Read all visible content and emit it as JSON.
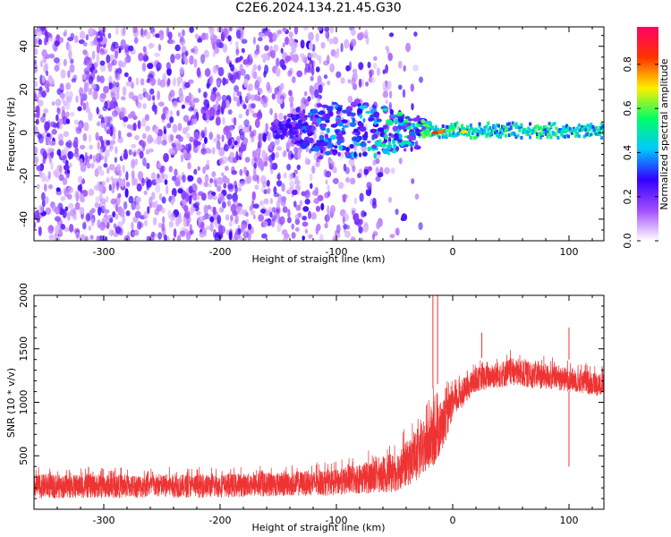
{
  "title": "C2E6.2024.134.21.45.G30",
  "chart_data": [
    {
      "type": "heatmap",
      "xlabel": "Height of straight line (km)",
      "ylabel": "Frequency (Hz)",
      "xlim": [
        -360,
        130
      ],
      "ylim": [
        -50,
        49
      ],
      "xticks": [
        -300,
        -200,
        -100,
        0,
        100
      ],
      "yticks": [
        -40,
        -20,
        0,
        20,
        40
      ],
      "colorbar": {
        "label": "Normalized spectral amplitude",
        "range": [
          0,
          0.97
        ],
        "ticks": [
          0.0,
          0.2,
          0.4,
          0.6,
          0.8
        ],
        "colors": [
          "#ffffff",
          "#a24dff",
          "#3300ff",
          "#00c8ff",
          "#00ff66",
          "#ffee00",
          "#ff3300",
          "#ff0066"
        ]
      },
      "features": [
        {
          "region": "noise scatter",
          "x": [
            -360,
            -80
          ],
          "y": [
            -50,
            49
          ],
          "amplitude": 0.1
        },
        {
          "region": "transition band",
          "x": [
            -155,
            -20
          ],
          "y": [
            -15,
            8
          ],
          "amplitude": 0.35
        },
        {
          "region": "coherent band",
          "x": [
            -20,
            130
          ],
          "y": [
            -1,
            3
          ],
          "amplitude": 0.45
        }
      ],
      "grid": false
    },
    {
      "type": "line",
      "xlabel": "Height of straight line (km)",
      "ylabel": "SNR (10 * v/v)",
      "xlim": [
        -360,
        130
      ],
      "ylim": [
        0,
        2000
      ],
      "xticks": [
        -300,
        -200,
        -100,
        0,
        100
      ],
      "yticks": [
        500,
        1000,
        1500,
        2000
      ],
      "color": "#ee3333",
      "envelope_x": [
        -360,
        -200,
        -100,
        -50,
        -30,
        -20,
        -10,
        0,
        20,
        50,
        100,
        130
      ],
      "envelope_low": [
        100,
        110,
        130,
        160,
        260,
        350,
        500,
        850,
        1100,
        1150,
        1100,
        1050
      ],
      "envelope_high": [
        400,
        400,
        450,
        650,
        900,
        1100,
        1200,
        1200,
        1400,
        1500,
        1400,
        1350
      ],
      "spikes": [
        {
          "x": -17,
          "y": 2000
        },
        {
          "x": -13,
          "y": 2000
        },
        {
          "x": 25,
          "y": 1650
        },
        {
          "x": 100,
          "y": 1700
        },
        {
          "x": 100,
          "y": 400
        }
      ],
      "grid": false
    }
  ]
}
